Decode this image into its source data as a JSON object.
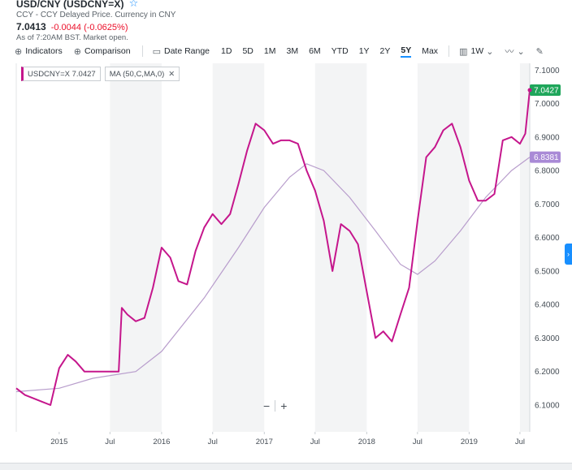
{
  "header": {
    "title": "USD/CNY (USDCNY=X)",
    "subtitle": "CCY - CCY Delayed Price. Currency in CNY",
    "price": "7.0413",
    "change": "-0.0044 (-0.0625%)",
    "as_of": "As of 7:20AM BST. Market open."
  },
  "toolbar": {
    "indicators": "Indicators",
    "comparison": "Comparison",
    "date_range": "Date Range",
    "ranges": [
      "1D",
      "5D",
      "1M",
      "3M",
      "6M",
      "YTD",
      "1Y",
      "2Y",
      "5Y",
      "Max"
    ],
    "selected_range": "5Y",
    "interval": "1W"
  },
  "legend": {
    "main": "USDCNY=X 7.0427",
    "ma": "MA (50,C,MA,0)"
  },
  "colors": {
    "price_line": "#c5168c",
    "ma_line": "#b89dcc",
    "price_tag": "#1fa65b",
    "ma_tag": "#a98ad6",
    "accent": "#188fff",
    "band": "#f3f4f5"
  },
  "chart_data": {
    "type": "line",
    "x_unit": "date",
    "x_range": [
      "2014-08-01",
      "2019-08-05"
    ],
    "ylim": [
      6.02,
      7.12
    ],
    "y_ticks": [
      6.1,
      6.2,
      6.3,
      6.4,
      6.5,
      6.6,
      6.7,
      6.8,
      6.9,
      7.0,
      7.1
    ],
    "y_tick_labels": [
      "6.1000",
      "6.2000",
      "6.3000",
      "6.4000",
      "6.5000",
      "6.6000",
      "6.7000",
      "6.8000",
      "6.9000",
      "7.0000",
      "7.1000"
    ],
    "x_ticks": [
      {
        "date": "2015-01-01",
        "label": "2015"
      },
      {
        "date": "2015-07-01",
        "label": "Jul"
      },
      {
        "date": "2016-01-01",
        "label": "2016"
      },
      {
        "date": "2016-07-01",
        "label": "Jul"
      },
      {
        "date": "2017-01-01",
        "label": "2017"
      },
      {
        "date": "2017-07-01",
        "label": "Jul"
      },
      {
        "date": "2018-01-01",
        "label": "2018"
      },
      {
        "date": "2018-07-01",
        "label": "Jul"
      },
      {
        "date": "2019-01-01",
        "label": "2019"
      },
      {
        "date": "2019-07-01",
        "label": "Jul"
      }
    ],
    "grid": false,
    "last_price_label": "7.0427",
    "last_ma_label": "6.8381",
    "series": [
      {
        "name": "USDCNY=X",
        "points": [
          [
            "2014-08-01",
            6.15
          ],
          [
            "2014-09-01",
            6.13
          ],
          [
            "2014-10-01",
            6.12
          ],
          [
            "2014-11-01",
            6.11
          ],
          [
            "2014-12-01",
            6.1
          ],
          [
            "2015-01-01",
            6.21
          ],
          [
            "2015-02-01",
            6.25
          ],
          [
            "2015-03-01",
            6.23
          ],
          [
            "2015-04-01",
            6.2
          ],
          [
            "2015-05-01",
            6.2
          ],
          [
            "2015-06-01",
            6.2
          ],
          [
            "2015-07-01",
            6.2
          ],
          [
            "2015-08-01",
            6.2
          ],
          [
            "2015-08-12",
            6.39
          ],
          [
            "2015-09-01",
            6.37
          ],
          [
            "2015-10-01",
            6.35
          ],
          [
            "2015-11-01",
            6.36
          ],
          [
            "2015-12-01",
            6.45
          ],
          [
            "2016-01-01",
            6.57
          ],
          [
            "2016-02-01",
            6.54
          ],
          [
            "2016-03-01",
            6.47
          ],
          [
            "2016-04-01",
            6.46
          ],
          [
            "2016-05-01",
            6.56
          ],
          [
            "2016-06-01",
            6.63
          ],
          [
            "2016-07-01",
            6.67
          ],
          [
            "2016-08-01",
            6.64
          ],
          [
            "2016-09-01",
            6.67
          ],
          [
            "2016-10-01",
            6.76
          ],
          [
            "2016-11-01",
            6.86
          ],
          [
            "2016-12-01",
            6.94
          ],
          [
            "2017-01-01",
            6.92
          ],
          [
            "2017-02-01",
            6.88
          ],
          [
            "2017-03-01",
            6.89
          ],
          [
            "2017-04-01",
            6.89
          ],
          [
            "2017-05-01",
            6.88
          ],
          [
            "2017-06-01",
            6.8
          ],
          [
            "2017-07-01",
            6.74
          ],
          [
            "2017-08-01",
            6.65
          ],
          [
            "2017-09-01",
            6.5
          ],
          [
            "2017-10-01",
            6.64
          ],
          [
            "2017-11-01",
            6.62
          ],
          [
            "2017-12-01",
            6.58
          ],
          [
            "2018-01-01",
            6.44
          ],
          [
            "2018-02-01",
            6.3
          ],
          [
            "2018-03-01",
            6.32
          ],
          [
            "2018-04-01",
            6.29
          ],
          [
            "2018-05-01",
            6.37
          ],
          [
            "2018-06-01",
            6.45
          ],
          [
            "2018-07-01",
            6.65
          ],
          [
            "2018-08-01",
            6.84
          ],
          [
            "2018-09-01",
            6.87
          ],
          [
            "2018-10-01",
            6.92
          ],
          [
            "2018-11-01",
            6.94
          ],
          [
            "2018-12-01",
            6.87
          ],
          [
            "2019-01-01",
            6.77
          ],
          [
            "2019-02-01",
            6.71
          ],
          [
            "2019-03-01",
            6.71
          ],
          [
            "2019-04-01",
            6.73
          ],
          [
            "2019-05-01",
            6.89
          ],
          [
            "2019-06-01",
            6.9
          ],
          [
            "2019-07-01",
            6.88
          ],
          [
            "2019-07-20",
            6.91
          ],
          [
            "2019-08-05",
            7.04
          ]
        ]
      },
      {
        "name": "MA (50,C,MA,0)",
        "points": [
          [
            "2014-08-01",
            6.14
          ],
          [
            "2015-01-01",
            6.15
          ],
          [
            "2015-05-01",
            6.18
          ],
          [
            "2015-10-01",
            6.2
          ],
          [
            "2016-01-01",
            6.26
          ],
          [
            "2016-06-01",
            6.42
          ],
          [
            "2016-10-01",
            6.57
          ],
          [
            "2017-01-01",
            6.69
          ],
          [
            "2017-04-01",
            6.78
          ],
          [
            "2017-06-01",
            6.82
          ],
          [
            "2017-08-01",
            6.8
          ],
          [
            "2017-11-01",
            6.72
          ],
          [
            "2018-02-01",
            6.62
          ],
          [
            "2018-05-01",
            6.52
          ],
          [
            "2018-07-01",
            6.49
          ],
          [
            "2018-09-01",
            6.53
          ],
          [
            "2018-12-01",
            6.62
          ],
          [
            "2019-03-01",
            6.72
          ],
          [
            "2019-06-01",
            6.8
          ],
          [
            "2019-08-05",
            6.84
          ]
        ]
      }
    ]
  }
}
